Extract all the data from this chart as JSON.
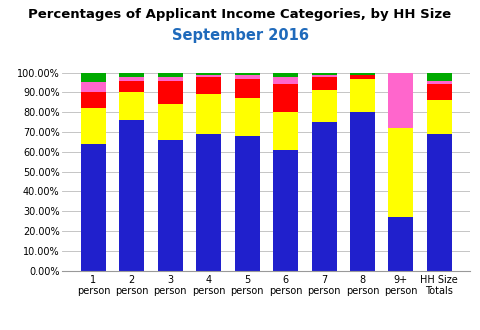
{
  "title_line1": "Percentages of Applicant Income Categories, by HH Size",
  "title_line2": "September 2016",
  "categories": [
    "1\nperson",
    "2\nperson",
    "3\nperson",
    "4\nperson",
    "5\nperson",
    "6\nperson",
    "7\nperson",
    "8\nperson",
    "9+\nperson",
    "HH Size\nTotals"
  ],
  "series": {
    "30% AMI": [
      64.0,
      76.0,
      66.0,
      69.0,
      68.0,
      61.0,
      75.0,
      80.0,
      27.0,
      69.0
    ],
    "50% AMI": [
      18.0,
      14.0,
      18.0,
      20.0,
      19.0,
      19.0,
      16.0,
      17.0,
      45.0,
      17.0
    ],
    "60% AMI": [
      8.0,
      6.0,
      12.0,
      9.0,
      10.0,
      14.0,
      7.0,
      2.0,
      0.0,
      8.0
    ],
    "80% AMI": [
      5.0,
      2.0,
      2.0,
      1.0,
      2.0,
      4.0,
      1.0,
      0.0,
      28.0,
      2.0
    ],
    "100% AMI and higher": [
      5.0,
      2.0,
      2.0,
      1.0,
      1.0,
      2.0,
      1.0,
      1.0,
      0.0,
      4.0
    ]
  },
  "colors": {
    "30% AMI": "#2020cc",
    "50% AMI": "#ffff00",
    "60% AMI": "#ff0000",
    "80% AMI": "#ff66cc",
    "100% AMI and higher": "#00aa00"
  },
  "ylim": [
    0,
    100
  ],
  "yticks": [
    0,
    10,
    20,
    30,
    40,
    50,
    60,
    70,
    80,
    90,
    100
  ],
  "ytick_labels": [
    "0.00%",
    "10.00%",
    "20.00%",
    "30.00%",
    "40.00%",
    "50.00%",
    "60.00%",
    "70.00%",
    "80.00%",
    "90.00%",
    "100.00%"
  ],
  "title_line1_fontsize": 9.5,
  "title_line2_fontsize": 10.5,
  "title_line2_color": "#1f6abb",
  "background_color": "#ffffff",
  "grid_color": "#bbbbbb"
}
